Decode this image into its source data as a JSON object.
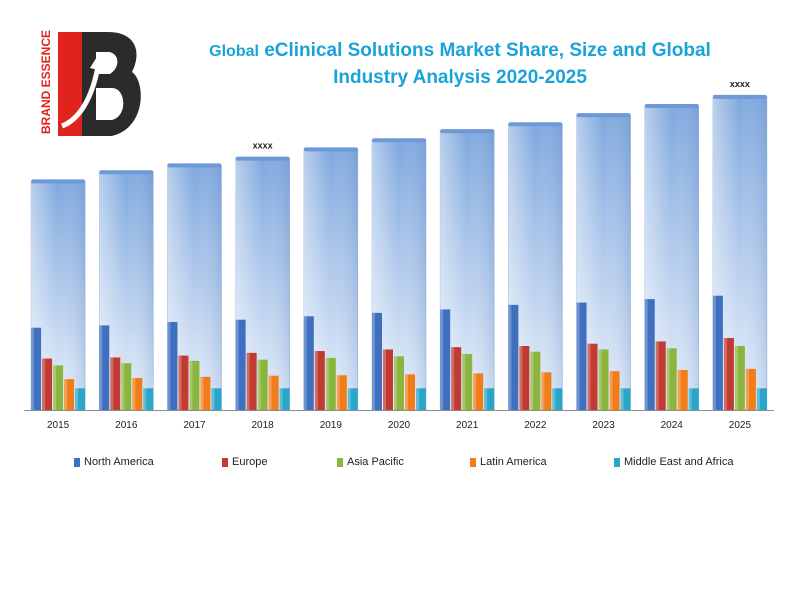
{
  "brand": {
    "logo_text": "BRAND ESSENCE",
    "logo_colors": {
      "red": "#e0231c",
      "dark": "#2b2b2b",
      "white": "#ffffff"
    }
  },
  "title": {
    "prefix": "Global",
    "line1": " eClinical Solutions Market Share, Size and Global",
    "line2": "Industry Analysis 2020-2025",
    "color": "#1aa3d9"
  },
  "chart_data": {
    "type": "bar",
    "categories": [
      "2015",
      "2016",
      "2017",
      "2018",
      "2019",
      "2020",
      "2021",
      "2022",
      "2023",
      "2024",
      "2025"
    ],
    "total_values": [
      100,
      104,
      107,
      110,
      114,
      118,
      122,
      125,
      129,
      133,
      137
    ],
    "series": [
      {
        "name": "North America",
        "color": "#3f6fbf",
        "values": [
          36,
          37,
          38.5,
          39.5,
          41,
          42.5,
          44,
          46,
          47,
          48.5,
          50
        ]
      },
      {
        "name": "Europe",
        "color": "#c23b32",
        "values": [
          22.5,
          23,
          23.8,
          25,
          25.8,
          26.5,
          27.5,
          28,
          29,
          30,
          31.5
        ]
      },
      {
        "name": "Asia Pacific",
        "color": "#8ab63f",
        "values": [
          19.5,
          20.5,
          21.5,
          22,
          22.8,
          23.5,
          24.5,
          25.5,
          26.5,
          27,
          28
        ]
      },
      {
        "name": "Latin America",
        "color": "#f07d1a",
        "values": [
          13.5,
          14,
          14.5,
          15,
          15.2,
          15.6,
          16,
          16.5,
          17,
          17.5,
          18
        ]
      },
      {
        "name": "Middle East and Africa",
        "color": "#2aa6c9",
        "values": [
          9.5,
          9.5,
          9.5,
          9.5,
          9.5,
          9.5,
          9.5,
          9.5,
          9.5,
          9.5,
          9.5
        ]
      }
    ],
    "annotations": [
      {
        "category": "2018",
        "text": "xxxx"
      },
      {
        "category": "2025",
        "text": "xxxx"
      }
    ],
    "ylim": [
      0,
      140
    ],
    "legend_position": "bottom",
    "grid": false
  }
}
